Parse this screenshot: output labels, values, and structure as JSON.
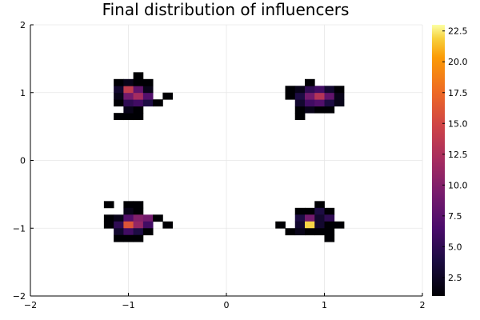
{
  "chart_data": {
    "type": "heatmap",
    "title": "Final distribution of influencers",
    "xlabel": "",
    "ylabel": "",
    "xlim": [
      -2,
      2
    ],
    "ylim": [
      -2,
      2
    ],
    "x_ticks": [
      -2,
      -1,
      0,
      1,
      2
    ],
    "y_ticks": [
      -2,
      -1,
      0,
      1,
      2
    ],
    "x_tick_labels": [
      "−2",
      "−1",
      "0",
      "1",
      "2"
    ],
    "y_tick_labels": [
      "−2",
      "−1",
      "0",
      "1",
      "2"
    ],
    "grid": true,
    "bin_width": 0.1,
    "colorbar": {
      "colormap": "inferno",
      "range": [
        1,
        23
      ],
      "ticks": [
        2.5,
        5.0,
        7.5,
        10.0,
        12.5,
        15.0,
        17.5,
        20.0,
        22.5
      ],
      "tick_labels": [
        "2.5",
        "5.0",
        "7.5",
        "10.0",
        "12.5",
        "15.0",
        "17.5",
        "20.0",
        "22.5"
      ]
    },
    "cells": [
      {
        "x": -1.0,
        "y": 0.65,
        "v": 1
      },
      {
        "x": -0.9,
        "y": 0.65,
        "v": 1
      },
      {
        "x": -1.1,
        "y": 0.65,
        "v": 1
      },
      {
        "x": -1.0,
        "y": 0.75,
        "v": 2
      },
      {
        "x": -0.9,
        "y": 0.75,
        "v": 1
      },
      {
        "x": -1.1,
        "y": 0.85,
        "v": 1
      },
      {
        "x": -1.0,
        "y": 0.85,
        "v": 5
      },
      {
        "x": -0.9,
        "y": 0.85,
        "v": 6
      },
      {
        "x": -0.8,
        "y": 0.85,
        "v": 4
      },
      {
        "x": -0.7,
        "y": 0.85,
        "v": 1
      },
      {
        "x": -1.1,
        "y": 0.95,
        "v": 2
      },
      {
        "x": -1.0,
        "y": 0.95,
        "v": 9
      },
      {
        "x": -0.9,
        "y": 0.95,
        "v": 12
      },
      {
        "x": -0.8,
        "y": 0.95,
        "v": 7
      },
      {
        "x": -0.6,
        "y": 0.95,
        "v": 1
      },
      {
        "x": -1.1,
        "y": 1.05,
        "v": 3
      },
      {
        "x": -1.0,
        "y": 1.05,
        "v": 14
      },
      {
        "x": -0.9,
        "y": 1.05,
        "v": 8
      },
      {
        "x": -0.8,
        "y": 1.05,
        "v": 2
      },
      {
        "x": -1.1,
        "y": 1.15,
        "v": 1
      },
      {
        "x": -1.0,
        "y": 1.15,
        "v": 2
      },
      {
        "x": -0.9,
        "y": 1.15,
        "v": 1
      },
      {
        "x": -0.8,
        "y": 1.15,
        "v": 1
      },
      {
        "x": -0.9,
        "y": 1.25,
        "v": 1
      },
      {
        "x": 0.75,
        "y": 0.65,
        "v": 1
      },
      {
        "x": 0.75,
        "y": 0.75,
        "v": 1
      },
      {
        "x": 0.85,
        "y": 0.75,
        "v": 2
      },
      {
        "x": 0.95,
        "y": 0.75,
        "v": 1
      },
      {
        "x": 1.05,
        "y": 0.75,
        "v": 1
      },
      {
        "x": 0.75,
        "y": 0.85,
        "v": 3
      },
      {
        "x": 0.85,
        "y": 0.85,
        "v": 6
      },
      {
        "x": 0.95,
        "y": 0.85,
        "v": 7
      },
      {
        "x": 1.05,
        "y": 0.85,
        "v": 4
      },
      {
        "x": 1.15,
        "y": 0.85,
        "v": 2
      },
      {
        "x": 0.65,
        "y": 0.95,
        "v": 1
      },
      {
        "x": 0.75,
        "y": 0.95,
        "v": 4
      },
      {
        "x": 0.85,
        "y": 0.95,
        "v": 9
      },
      {
        "x": 0.95,
        "y": 0.95,
        "v": 13
      },
      {
        "x": 1.05,
        "y": 0.95,
        "v": 8
      },
      {
        "x": 1.15,
        "y": 0.95,
        "v": 2
      },
      {
        "x": 0.65,
        "y": 1.05,
        "v": 1
      },
      {
        "x": 0.75,
        "y": 1.05,
        "v": 2
      },
      {
        "x": 0.85,
        "y": 1.05,
        "v": 5
      },
      {
        "x": 0.95,
        "y": 1.05,
        "v": 6
      },
      {
        "x": 1.05,
        "y": 1.05,
        "v": 3
      },
      {
        "x": 1.15,
        "y": 1.05,
        "v": 1
      },
      {
        "x": 0.85,
        "y": 1.15,
        "v": 1
      },
      {
        "x": -1.2,
        "y": -0.65,
        "v": 1
      },
      {
        "x": -1.0,
        "y": -0.65,
        "v": 1
      },
      {
        "x": -0.9,
        "y": -0.65,
        "v": 1
      },
      {
        "x": -1.0,
        "y": -0.75,
        "v": 2
      },
      {
        "x": -0.9,
        "y": -0.75,
        "v": 1
      },
      {
        "x": -1.2,
        "y": -0.85,
        "v": 1
      },
      {
        "x": -1.1,
        "y": -0.85,
        "v": 2
      },
      {
        "x": -1.0,
        "y": -0.85,
        "v": 7
      },
      {
        "x": -0.9,
        "y": -0.85,
        "v": 10
      },
      {
        "x": -0.8,
        "y": -0.85,
        "v": 9
      },
      {
        "x": -0.7,
        "y": -0.85,
        "v": 1
      },
      {
        "x": -1.2,
        "y": -0.95,
        "v": 1
      },
      {
        "x": -1.1,
        "y": -0.95,
        "v": 5
      },
      {
        "x": -1.0,
        "y": -0.95,
        "v": 16
      },
      {
        "x": -0.9,
        "y": -0.95,
        "v": 11
      },
      {
        "x": -0.8,
        "y": -0.95,
        "v": 6
      },
      {
        "x": -0.6,
        "y": -0.95,
        "v": 1
      },
      {
        "x": -1.1,
        "y": -1.05,
        "v": 3
      },
      {
        "x": -1.0,
        "y": -1.05,
        "v": 6
      },
      {
        "x": -0.9,
        "y": -1.05,
        "v": 4
      },
      {
        "x": -0.8,
        "y": -1.05,
        "v": 1
      },
      {
        "x": -1.1,
        "y": -1.15,
        "v": 1
      },
      {
        "x": -1.0,
        "y": -1.15,
        "v": 1
      },
      {
        "x": -0.9,
        "y": -1.15,
        "v": 1
      },
      {
        "x": 0.95,
        "y": -0.65,
        "v": 1
      },
      {
        "x": 0.75,
        "y": -0.75,
        "v": 1
      },
      {
        "x": 0.85,
        "y": -0.75,
        "v": 1
      },
      {
        "x": 0.95,
        "y": -0.75,
        "v": 4
      },
      {
        "x": 1.05,
        "y": -0.75,
        "v": 1
      },
      {
        "x": 0.75,
        "y": -0.85,
        "v": 4
      },
      {
        "x": 0.85,
        "y": -0.85,
        "v": 9
      },
      {
        "x": 0.95,
        "y": -0.85,
        "v": 3
      },
      {
        "x": 1.05,
        "y": -0.85,
        "v": 5
      },
      {
        "x": 0.55,
        "y": -0.95,
        "v": 1
      },
      {
        "x": 0.75,
        "y": -0.95,
        "v": 3
      },
      {
        "x": 0.85,
        "y": -0.95,
        "v": 22
      },
      {
        "x": 0.95,
        "y": -0.95,
        "v": 3
      },
      {
        "x": 1.05,
        "y": -0.95,
        "v": 1
      },
      {
        "x": 1.15,
        "y": -0.95,
        "v": 1
      },
      {
        "x": 0.65,
        "y": -1.05,
        "v": 1
      },
      {
        "x": 0.75,
        "y": -1.05,
        "v": 2
      },
      {
        "x": 0.85,
        "y": -1.05,
        "v": 1
      },
      {
        "x": 0.95,
        "y": -1.05,
        "v": 1
      },
      {
        "x": 1.05,
        "y": -1.05,
        "v": 1
      },
      {
        "x": 1.05,
        "y": -1.15,
        "v": 1
      }
    ]
  }
}
